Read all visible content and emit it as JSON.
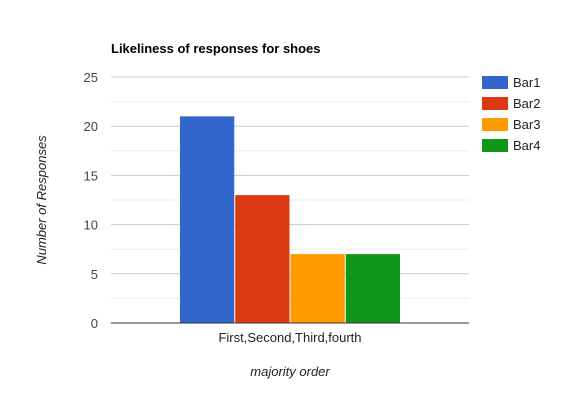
{
  "chart_data": {
    "type": "bar",
    "title": "Likeliness of responses for shoes",
    "xlabel": "majority order",
    "ylabel": "Number of Responses",
    "categories": [
      "First,Second,Third,fourth"
    ],
    "series": [
      {
        "name": "Bar1",
        "values": [
          21
        ],
        "color": "#3366cc"
      },
      {
        "name": "Bar2",
        "values": [
          13
        ],
        "color": "#dc3912"
      },
      {
        "name": "Bar3",
        "values": [
          7
        ],
        "color": "#ff9900"
      },
      {
        "name": "Bar4",
        "values": [
          7
        ],
        "color": "#109618"
      }
    ],
    "ylim": [
      0,
      25
    ],
    "yticks": [
      "0",
      "5",
      "10",
      "15",
      "20",
      "25"
    ],
    "grid": true,
    "legend_position": "right"
  }
}
